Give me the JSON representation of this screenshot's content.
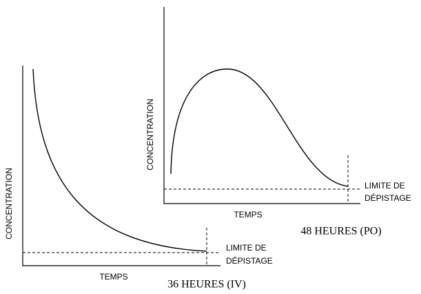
{
  "panels": [
    {
      "y_label": "CONCENTRATION",
      "x_label": "TEMPS",
      "limit_label": [
        "LIMITE DE",
        "DÉPISTAGE"
      ],
      "caption": "36 HEURES (IV)"
    },
    {
      "y_label": "CONCENTRATION",
      "x_label": "TEMPS",
      "limit_label": [
        "LIMITE DE",
        "DÉPISTAGE"
      ],
      "caption": "48 HEURES (PO)"
    }
  ]
}
